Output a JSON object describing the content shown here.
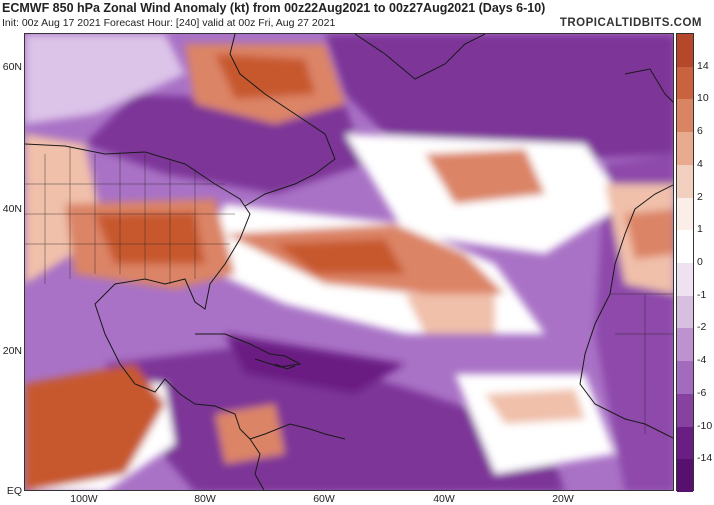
{
  "header": {
    "title": "ECMWF 850 hPa Zonal Wind Anomaly (kt) from 00z22Aug2021 to 00z27Aug2021 (Days 6-10)",
    "subtitle": "Init: 00z Aug 17 2021   Forecast Hour: [240]   valid at 00z Fri, Aug 27 2021",
    "brand": "TROPICALTIDBITS.COM"
  },
  "axes": {
    "lat_labels": [
      "60N",
      "40N",
      "20N",
      "EQ"
    ],
    "lon_labels": [
      "100W",
      "80W",
      "60W",
      "40W",
      "20W"
    ]
  },
  "colorbar": {
    "labels": [
      "14",
      "10",
      "6",
      "4",
      "2",
      "1",
      "0",
      "-1",
      "-2",
      "-4",
      "-6",
      "-10",
      "-14"
    ],
    "colors": [
      "#b5482a",
      "#c9623f",
      "#d98563",
      "#e8ab90",
      "#f2cfbf",
      "#fbeee8",
      "#ffffff",
      "#eee2f1",
      "#d7bfe0",
      "#bd92cf",
      "#a36bbd",
      "#87419f",
      "#6a1e83",
      "#58106f"
    ]
  },
  "map": {
    "region": "North Atlantic / North America / West Africa",
    "colors": {
      "strong_positive": "#c7582f",
      "moderate_positive": "#dc8466",
      "weak_positive": "#f0c0aa",
      "neutral": "#ffffff",
      "weak_negative": "#dcc3e8",
      "moderate_negative": "#a972c6",
      "strong_negative": "#7d3598",
      "very_strong_negative": "#6a1e83",
      "coastline": "#1a1a1a"
    }
  }
}
